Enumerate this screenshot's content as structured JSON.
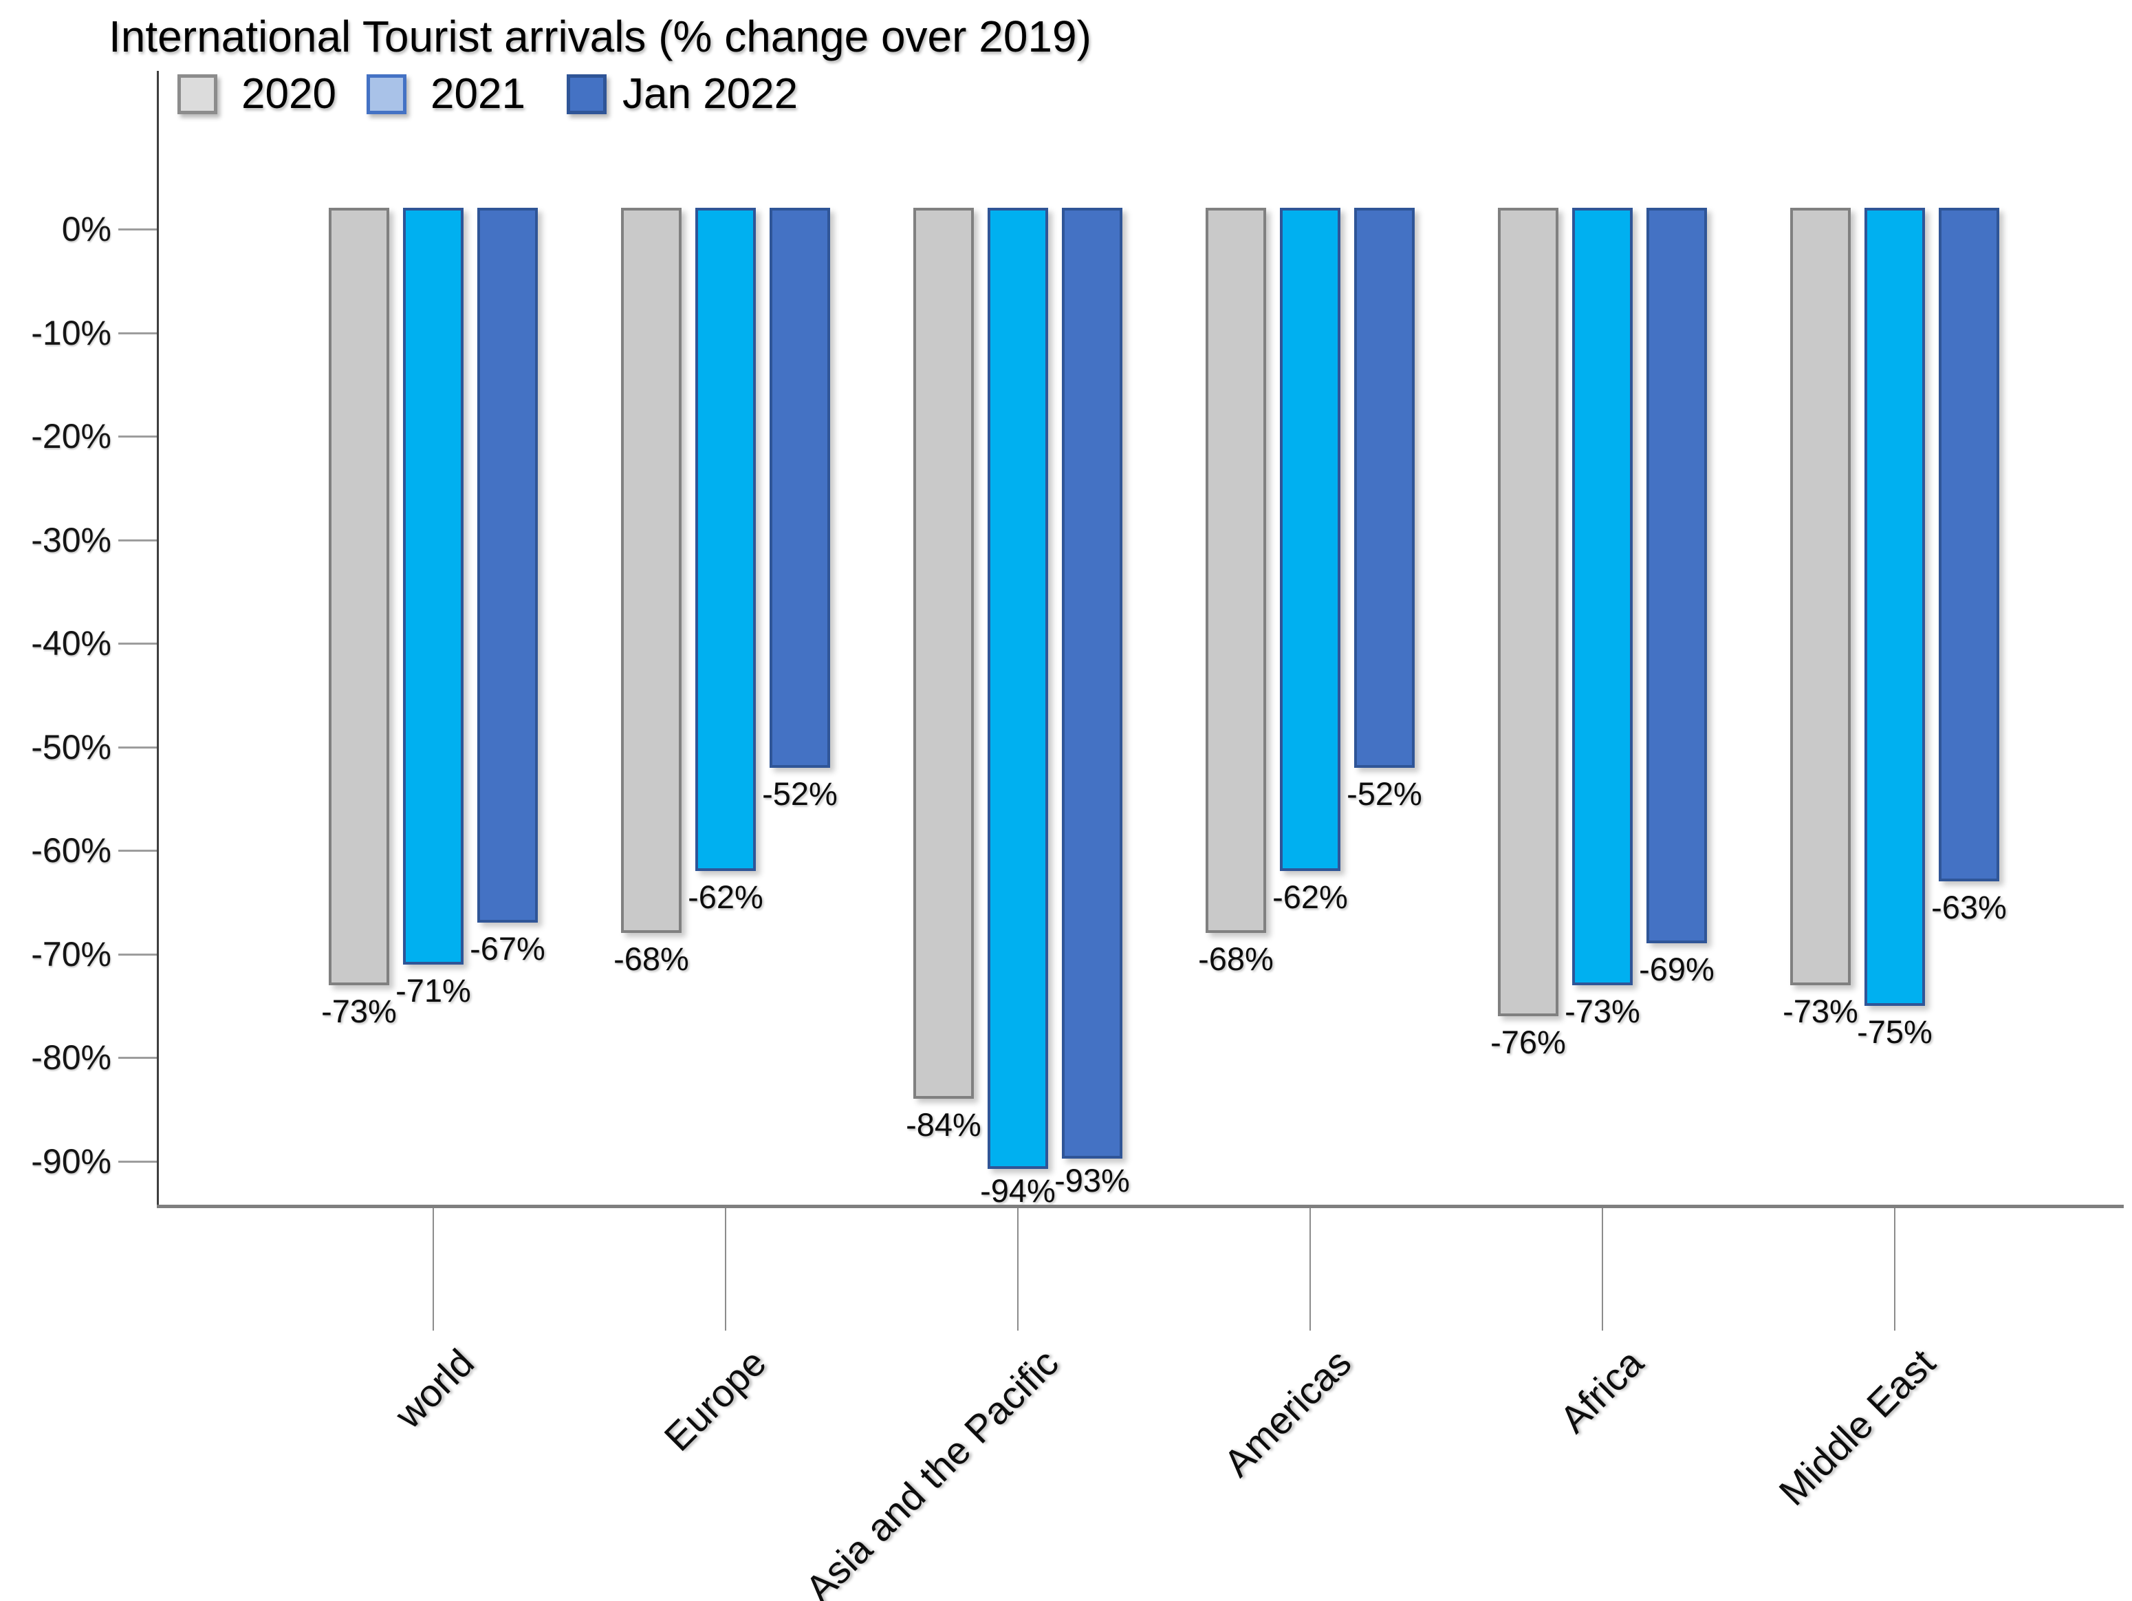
{
  "chart_data": {
    "type": "bar",
    "title": "International Tourist arrivals  (% change over 2019)",
    "categories": [
      "world",
      "Europe",
      "Asia and the Pacific",
      "Americas",
      "Africa",
      "Middle East"
    ],
    "series": [
      {
        "name": "2020",
        "values": [
          -73,
          -68,
          -84,
          -68,
          -76,
          -73
        ],
        "labels": [
          "-73%",
          "-68%",
          "-84%",
          "-68%",
          "-76%",
          "-73%"
        ],
        "fill": "#C9C9C9",
        "border": "#808080",
        "legend_fill": "#DCDCDC",
        "legend_border": "#8C8C8C"
      },
      {
        "name": "2021",
        "values": [
          -71,
          -62,
          -94,
          -62,
          -73,
          -75
        ],
        "labels": [
          "-71%",
          "-62%",
          "-94%",
          "-62%",
          "-73%",
          "-75%"
        ],
        "fill": "#00B0F0",
        "border": "#2F5597",
        "legend_fill": "#A9C2E8",
        "legend_border": "#4472C4"
      },
      {
        "name": "Jan 2022",
        "values": [
          -67,
          -52,
          -93,
          -52,
          -69,
          -63
        ],
        "labels": [
          "-67%",
          "-52%",
          "-93%",
          "-52%",
          "-69%",
          "-63%"
        ],
        "fill": "#4472C4",
        "border": "#2F5597",
        "legend_fill": "#4472C4",
        "legend_border": "#2F5597"
      }
    ],
    "yaxis": {
      "ticks": [
        "0%",
        "-10%",
        "-20%",
        "-30%",
        "-40%",
        "-50%",
        "-60%",
        "-70%",
        "-80%",
        "-90%"
      ],
      "tick_values": [
        0,
        -10,
        -20,
        -30,
        -40,
        -50,
        -60,
        -70,
        -80,
        -90
      ],
      "ylim": [
        -94.5,
        2.2
      ],
      "grid": false
    },
    "legend": {
      "position": "top-left",
      "items": [
        "2020",
        "2021",
        "Jan 2022"
      ]
    },
    "background": "#FFFFFF"
  }
}
